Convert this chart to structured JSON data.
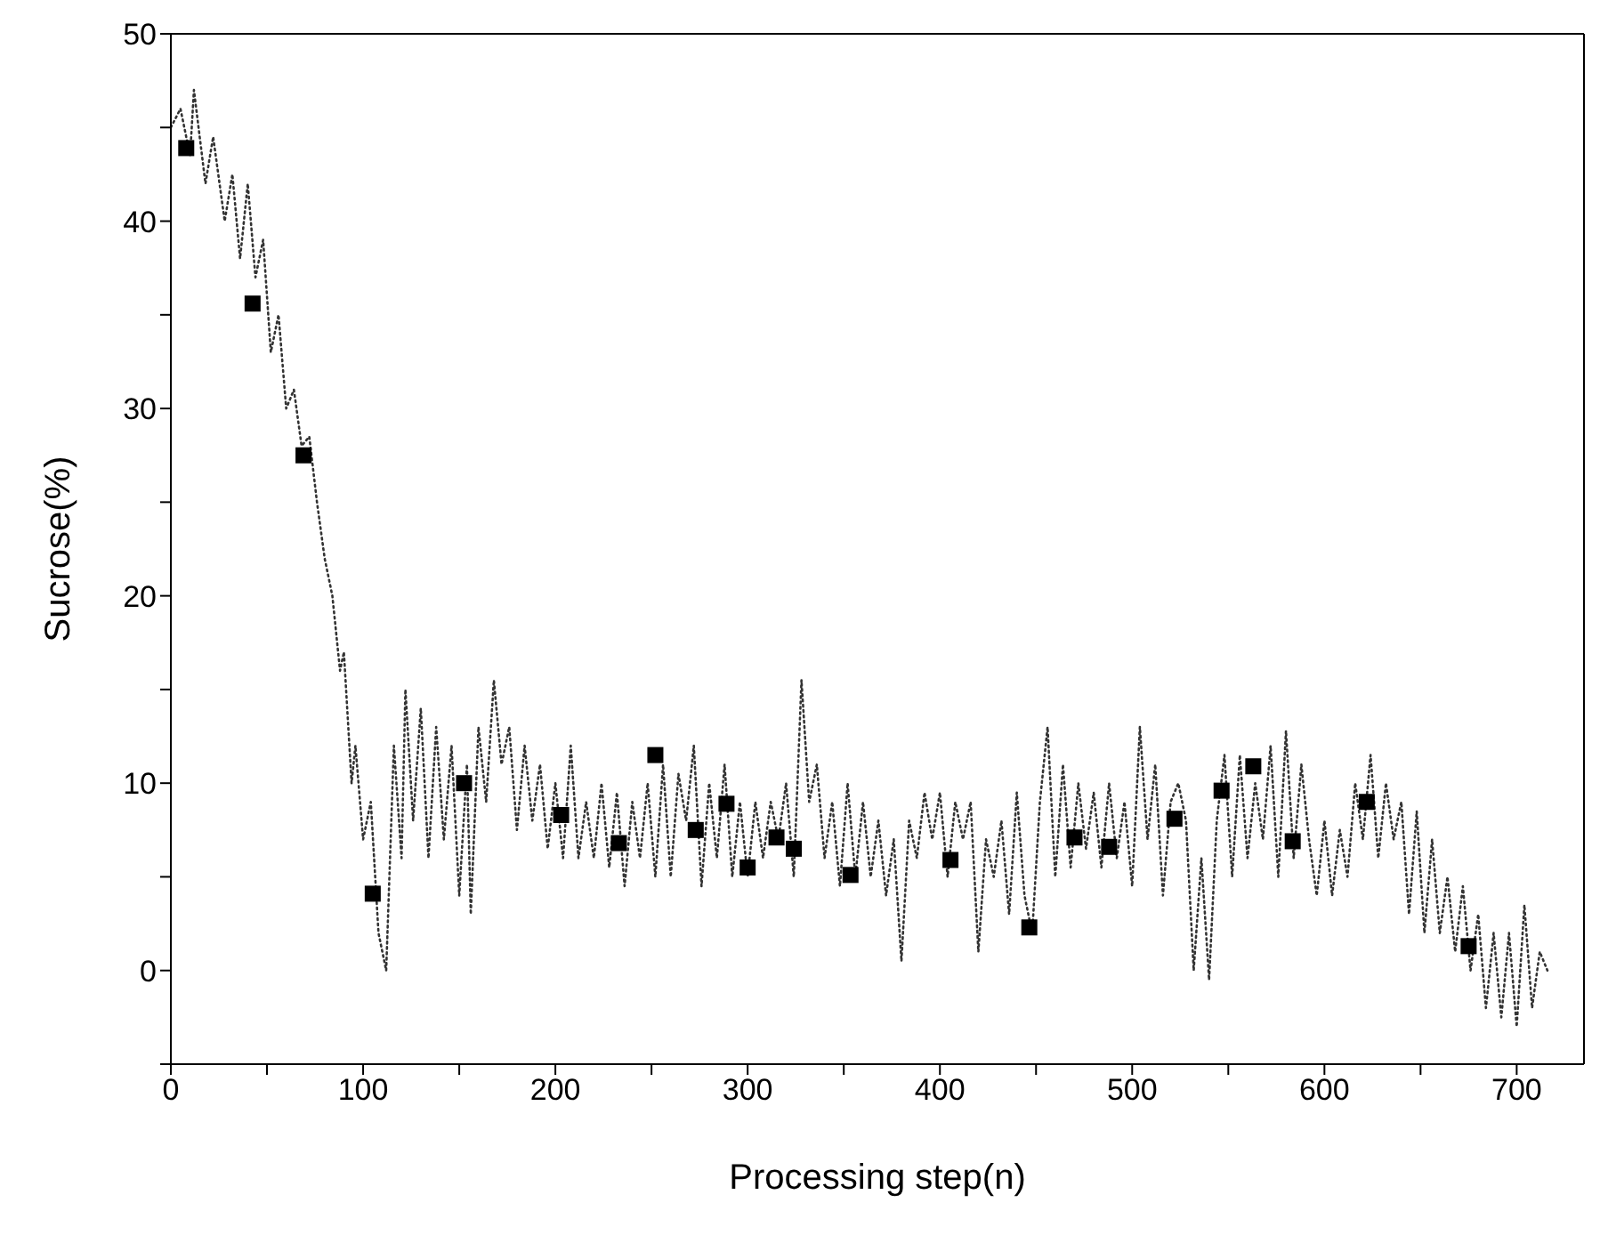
{
  "chart_data": {
    "type": "line",
    "xlabel": "Processing step(n)",
    "ylabel": "Sucrose(%)",
    "xlim": [
      0,
      735
    ],
    "ylim": [
      -5,
      50
    ],
    "xticks": [
      0,
      {
        "value": 50,
        "label": null
      },
      100,
      {
        "value": 150,
        "label": null
      },
      200,
      {
        "value": 250,
        "label": null
      },
      300,
      {
        "value": 350,
        "label": null
      },
      400,
      {
        "value": 450,
        "label": null
      },
      500,
      {
        "value": 550,
        "label": null
      },
      600,
      {
        "value": 650,
        "label": null
      },
      700
    ],
    "yticks": [
      {
        "value": -5,
        "label": null
      },
      0,
      {
        "value": 5,
        "label": null
      },
      10,
      {
        "value": 15,
        "label": null
      },
      20,
      {
        "value": 25,
        "label": null
      },
      30,
      {
        "value": 35,
        "label": null
      },
      40,
      {
        "value": 45,
        "label": null
      },
      50
    ],
    "grid": false,
    "series": [
      {
        "color": "#333333",
        "line_style": "dotted",
        "marker": "none",
        "x": [
          0,
          5,
          10,
          12,
          18,
          22,
          28,
          32,
          36,
          40,
          44,
          48,
          52,
          56,
          60,
          64,
          68,
          72,
          76,
          80,
          84,
          88,
          90,
          94,
          96,
          100,
          104,
          108,
          112,
          116,
          120,
          122,
          126,
          130,
          134,
          138,
          142,
          146,
          150,
          154,
          156,
          160,
          164,
          168,
          172,
          176,
          180,
          184,
          188,
          192,
          196,
          200,
          204,
          208,
          212,
          216,
          220,
          224,
          228,
          232,
          236,
          240,
          244,
          248,
          252,
          256,
          260,
          264,
          268,
          272,
          276,
          280,
          284,
          288,
          292,
          296,
          300,
          304,
          308,
          312,
          316,
          320,
          324,
          328,
          332,
          336,
          340,
          344,
          348,
          352,
          356,
          360,
          364,
          368,
          372,
          376,
          380,
          384,
          388,
          392,
          396,
          400,
          404,
          408,
          412,
          416,
          420,
          424,
          428,
          432,
          436,
          440,
          444,
          448,
          452,
          456,
          460,
          464,
          468,
          472,
          476,
          480,
          484,
          488,
          492,
          496,
          500,
          504,
          508,
          512,
          516,
          520,
          524,
          528,
          532,
          536,
          540,
          544,
          548,
          552,
          556,
          560,
          564,
          568,
          572,
          576,
          580,
          584,
          588,
          592,
          596,
          600,
          604,
          608,
          612,
          616,
          620,
          624,
          628,
          632,
          636,
          640,
          644,
          648,
          652,
          656,
          660,
          664,
          668,
          672,
          676,
          680,
          684,
          688,
          692,
          696,
          700,
          704,
          708,
          712,
          716
        ],
        "values": [
          45,
          46,
          43.5,
          47,
          42,
          44.5,
          40,
          42.5,
          38,
          42,
          37,
          39,
          33,
          35,
          30,
          31,
          28,
          28.5,
          25,
          22,
          20,
          16,
          17,
          10,
          12,
          7,
          9,
          2,
          0,
          12,
          6,
          15,
          8,
          14,
          6,
          13,
          7,
          12,
          4,
          11,
          3,
          13,
          9,
          15.5,
          11,
          13,
          7.5,
          12,
          8,
          11,
          6.5,
          10,
          6,
          12,
          6,
          9,
          6,
          10,
          5.5,
          9.5,
          4.5,
          9,
          6,
          10,
          5,
          11,
          5,
          10.5,
          8,
          12,
          4.5,
          10,
          6,
          11,
          5,
          9,
          5,
          9,
          6,
          9,
          7,
          10,
          5,
          15.5,
          9,
          11,
          6,
          9,
          4.5,
          10,
          5,
          9,
          5,
          8,
          4,
          7,
          0.5,
          8,
          6,
          9.5,
          7,
          9.5,
          5,
          9,
          7,
          9,
          1,
          7,
          5,
          8,
          3,
          9.5,
          4,
          2,
          9,
          13,
          5,
          11,
          5.5,
          10,
          6.5,
          9.5,
          5.5,
          10,
          6,
          9,
          4.5,
          13,
          7,
          11,
          4,
          9,
          10,
          8,
          0,
          6,
          -0.5,
          8,
          11.5,
          5,
          11.5,
          6,
          10,
          7,
          12,
          5,
          12.8,
          6,
          11,
          7,
          4,
          8,
          4,
          7.5,
          5,
          10,
          7,
          11.5,
          6,
          10,
          7,
          9,
          3,
          8.5,
          2,
          7,
          2,
          5,
          1,
          4.5,
          0,
          3,
          -2,
          2,
          -2.5,
          2,
          -3,
          3.5,
          -2,
          1,
          0
        ]
      },
      {
        "type": "scatter",
        "color": "#000000",
        "marker": "square",
        "x": [
          8,
          42.5,
          69,
          105,
          152.5,
          203,
          233,
          252,
          273,
          289,
          300,
          315,
          324,
          353.5,
          405.5,
          446.5,
          470,
          488,
          522,
          546.5,
          563,
          583.5,
          622,
          675
        ],
        "values": [
          43.9,
          35.6,
          27.5,
          4.1,
          10,
          8.3,
          6.8,
          11.5,
          7.5,
          8.9,
          5.5,
          7.1,
          6.5,
          5.1,
          5.9,
          2.3,
          7.1,
          6.6,
          8.1,
          9.6,
          10.9,
          6.9,
          9,
          1.3
        ]
      }
    ]
  }
}
